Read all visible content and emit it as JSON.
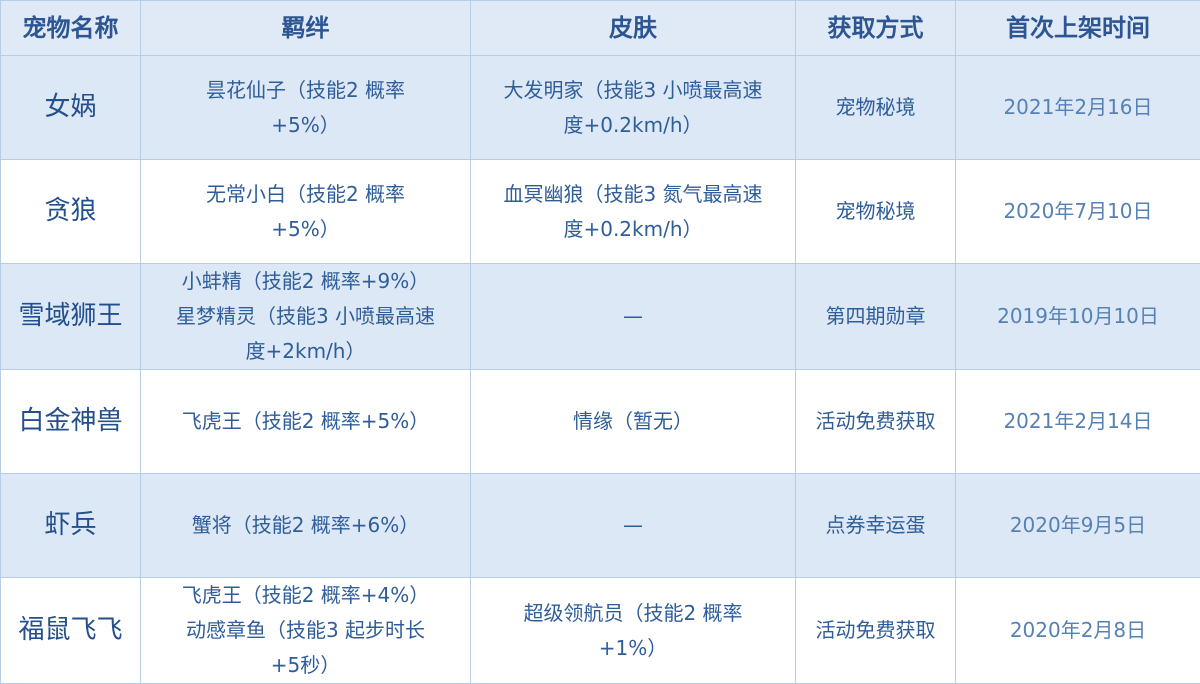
{
  "table": {
    "header": [
      "宠物名称",
      "羁绊",
      "皮肤",
      "获取方式",
      "首次上架时间"
    ],
    "rows": [
      [
        [
          "女娲"
        ],
        [
          "昙花仙子（技能2 概率",
          "+5%）"
        ],
        [
          "大发明家（技能3 小喷最高速",
          "度+0.2km/h）"
        ],
        [
          "宠物秘境"
        ],
        [
          "2021年2月16日"
        ]
      ],
      [
        [
          "贪狼"
        ],
        [
          "无常小白（技能2 概率",
          "+5%）"
        ],
        [
          "血冥幽狼（技能3 氮气最高速",
          "度+0.2km/h）"
        ],
        [
          "宠物秘境"
        ],
        [
          "2020年7月10日"
        ]
      ],
      [
        [
          "雪域狮王"
        ],
        [
          "小蚌精（技能2 概率+9%）",
          "星梦精灵（技能3 小喷最高速",
          "度+2km/h）"
        ],
        [
          "—"
        ],
        [
          "第四期勋章"
        ],
        [
          "2019年10月10日"
        ]
      ],
      [
        [
          "白金神兽"
        ],
        [
          "飞虎王（技能2 概率+5%）"
        ],
        [
          "情缘（暂无）"
        ],
        [
          "活动免费获取"
        ],
        [
          "2021年2月14日"
        ]
      ],
      [
        [
          "虾兵"
        ],
        [
          "蟹将（技能2 概率+6%）"
        ],
        [
          "—"
        ],
        [
          "点券幸运蛋"
        ],
        [
          "2020年9月5日"
        ]
      ],
      [
        [
          "福鼠飞飞"
        ],
        [
          "飞虎王（技能2 概率+4%）",
          "动感章鱼（技能3 起步时长",
          "+5秒）"
        ],
        [
          "超级领航员（技能2 概率",
          "+1%）"
        ],
        [
          "活动免费获取"
        ],
        [
          "2020年2月8日"
        ]
      ]
    ]
  }
}
